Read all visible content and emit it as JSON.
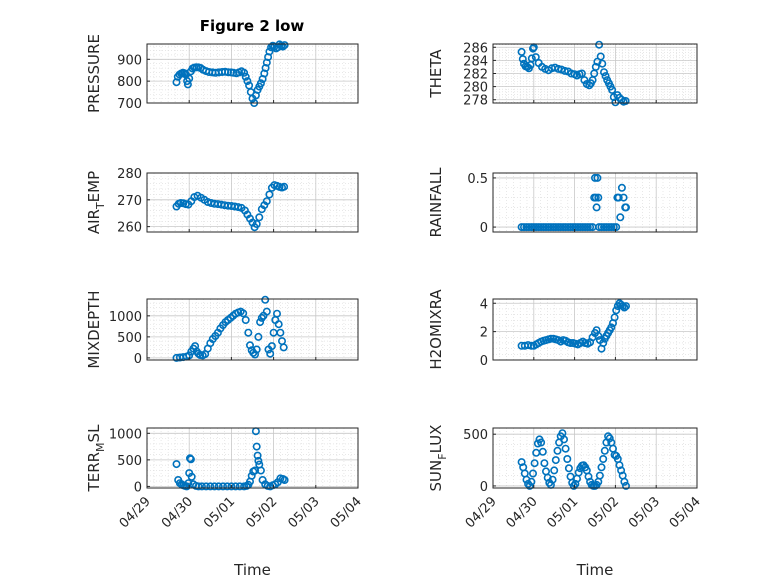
{
  "figure": {
    "title": "Figure 2 low",
    "marker_color": "#0072BD",
    "x_ticks": [
      "04/29",
      "04/30",
      "05/01",
      "05/02",
      "05/03",
      "05/04"
    ],
    "x_label": "Time"
  },
  "chart_data": [
    {
      "type": "scatter",
      "id": "pressure",
      "ylabel": "PRESSURE",
      "ylim": [
        700,
        970
      ],
      "yticks": [
        700,
        800,
        900
      ],
      "grid": true,
      "series": [
        {
          "x": [
            0.7,
            0.73,
            0.77,
            0.81,
            0.85,
            0.89,
            0.92,
            0.95,
            0.97,
            1.0,
            1.04,
            1.08,
            1.12,
            1.17,
            1.22,
            1.27,
            1.33,
            1.4,
            1.47,
            1.55,
            1.62,
            1.7,
            1.78,
            1.85,
            1.92,
            1.99,
            2.05,
            2.12,
            2.18,
            2.24,
            2.3,
            2.34,
            2.38,
            2.42,
            2.46,
            2.5,
            2.54,
            2.58,
            2.62,
            2.66,
            2.7,
            2.74,
            2.78,
            2.81,
            2.84,
            2.87,
            2.9,
            2.94,
            2.98,
            3.02,
            3.06,
            3.1,
            3.14,
            3.18,
            3.22,
            3.26
          ],
          "y": [
            795,
            820,
            830,
            835,
            838,
            836,
            830,
            800,
            785,
            812,
            845,
            858,
            862,
            864,
            863,
            860,
            852,
            846,
            842,
            840,
            838,
            840,
            842,
            843,
            841,
            840,
            838,
            836,
            840,
            845,
            838,
            820,
            800,
            780,
            750,
            720,
            700,
            735,
            760,
            775,
            790,
            810,
            835,
            860,
            885,
            910,
            935,
            955,
            962,
            958,
            950,
            955,
            968,
            962,
            958,
            965
          ]
        }
      ]
    },
    {
      "type": "scatter",
      "id": "theta",
      "ylabel": "THETA",
      "ylim": [
        277.5,
        286.5
      ],
      "yticks": [
        278,
        280,
        282,
        284,
        286
      ],
      "ytick_labels": [
        "278",
        "280",
        "282",
        "284",
        "286"
      ],
      "grid": true,
      "series": [
        {
          "x": [
            0.7,
            0.73,
            0.76,
            0.8,
            0.84,
            0.88,
            0.92,
            0.95,
            0.98,
            1.0,
            1.05,
            1.12,
            1.2,
            1.28,
            1.36,
            1.44,
            1.52,
            1.6,
            1.68,
            1.76,
            1.84,
            1.92,
            2.0,
            2.06,
            2.12,
            2.18,
            2.24,
            2.3,
            2.36,
            2.4,
            2.44,
            2.48,
            2.52,
            2.56,
            2.6,
            2.64,
            2.68,
            2.72,
            2.76,
            2.8,
            2.84,
            2.88,
            2.92,
            2.96,
            3.0,
            3.05,
            3.1,
            3.15,
            3.2,
            3.25
          ],
          "y": [
            285.3,
            284.2,
            283.5,
            283.1,
            283.0,
            282.8,
            283.3,
            284.3,
            285.8,
            286.0,
            284.5,
            283.6,
            283.0,
            282.7,
            282.5,
            282.8,
            282.9,
            282.7,
            282.6,
            282.4,
            282.3,
            282.0,
            281.9,
            281.7,
            281.9,
            282.0,
            281.0,
            280.4,
            280.2,
            280.5,
            281.0,
            282.0,
            283.0,
            283.8,
            286.4,
            284.6,
            283.5,
            282.2,
            281.6,
            281.0,
            280.5,
            280.0,
            279.5,
            278.4,
            277.6,
            278.7,
            278.3,
            278.0,
            277.7,
            277.8
          ]
        }
      ]
    },
    {
      "type": "scatter",
      "id": "air_temp",
      "ylabel": "AIR",
      "ylabel_sub": "T",
      "ylabel_rest": "EMP",
      "ylim": [
        258,
        280
      ],
      "yticks": [
        260,
        270,
        280
      ],
      "grid": true,
      "series": [
        {
          "x": [
            0.7,
            0.75,
            0.8,
            0.86,
            0.92,
            0.98,
            1.05,
            1.12,
            1.2,
            1.28,
            1.36,
            1.44,
            1.52,
            1.6,
            1.68,
            1.76,
            1.84,
            1.92,
            2.0,
            2.08,
            2.16,
            2.24,
            2.32,
            2.38,
            2.44,
            2.5,
            2.55,
            2.6,
            2.66,
            2.72,
            2.78,
            2.84,
            2.9,
            2.96,
            3.02,
            3.08,
            3.14,
            3.2,
            3.25
          ],
          "y": [
            267.5,
            268.5,
            268.8,
            268.7,
            268.4,
            268.2,
            269.5,
            271.0,
            271.5,
            270.8,
            270.0,
            269.2,
            268.8,
            268.5,
            268.4,
            268.2,
            268.0,
            267.8,
            267.7,
            267.5,
            267.3,
            267.0,
            266.0,
            264.5,
            263.0,
            261.5,
            259.8,
            261.0,
            263.5,
            266.5,
            268.0,
            269.5,
            272.0,
            274.5,
            275.5,
            275.2,
            274.8,
            274.6,
            274.9
          ]
        }
      ]
    },
    {
      "type": "scatter",
      "id": "rainfall",
      "ylabel": "RAINFALL",
      "ylim": [
        -0.05,
        0.55
      ],
      "yticks": [
        0,
        0.5
      ],
      "ytick_labels": [
        "0",
        "0.5"
      ],
      "grid": true,
      "series": [
        {
          "x": [
            0.7,
            0.76,
            0.82,
            0.88,
            0.94,
            1.0,
            1.06,
            1.12,
            1.18,
            1.24,
            1.3,
            1.36,
            1.42,
            1.48,
            1.54,
            1.6,
            1.66,
            1.72,
            1.78,
            1.84,
            1.9,
            1.96,
            2.02,
            2.08,
            2.14,
            2.2,
            2.26,
            2.32,
            2.38,
            2.44,
            2.48,
            2.5,
            2.52,
            2.54,
            2.56,
            2.58,
            2.6,
            2.66,
            2.72,
            2.78,
            2.84,
            2.9,
            2.96,
            3.02,
            3.05,
            3.08,
            3.12,
            3.16,
            3.2,
            3.24,
            3.26
          ],
          "y": [
            0,
            0,
            0,
            0,
            0,
            0,
            0,
            0,
            0,
            0,
            0,
            0,
            0,
            0,
            0,
            0,
            0,
            0,
            0,
            0,
            0,
            0,
            0,
            0,
            0,
            0,
            0,
            0,
            0,
            0,
            0.3,
            0.5,
            0.3,
            0.2,
            0.5,
            0.3,
            0,
            0,
            0,
            0,
            0,
            0,
            0,
            0,
            0.3,
            0.3,
            0.1,
            0.4,
            0.3,
            0.2,
            0.2
          ]
        }
      ]
    },
    {
      "type": "scatter",
      "id": "mixdepth",
      "ylabel": "MIXDEPTH",
      "ylim": [
        -50,
        1400
      ],
      "yticks": [
        0,
        500,
        1000
      ],
      "grid": true,
      "series": [
        {
          "x": [
            0.7,
            0.78,
            0.86,
            0.94,
            1.0,
            1.05,
            1.1,
            1.14,
            1.18,
            1.22,
            1.26,
            1.32,
            1.38,
            1.44,
            1.5,
            1.56,
            1.62,
            1.68,
            1.74,
            1.8,
            1.86,
            1.92,
            1.98,
            2.04,
            2.1,
            2.16,
            2.22,
            2.28,
            2.34,
            2.4,
            2.44,
            2.48,
            2.52,
            2.56,
            2.6,
            2.64,
            2.68,
            2.72,
            2.76,
            2.8,
            2.84,
            2.88,
            2.92,
            2.96,
            3.0,
            3.04,
            3.08,
            3.12,
            3.16,
            3.2,
            3.24
          ],
          "y": [
            0,
            10,
            20,
            30,
            60,
            150,
            220,
            280,
            150,
            100,
            70,
            60,
            90,
            220,
            350,
            450,
            520,
            600,
            700,
            780,
            850,
            900,
            950,
            1000,
            1050,
            1080,
            1100,
            1060,
            900,
            600,
            300,
            180,
            120,
            80,
            200,
            500,
            850,
            950,
            1000,
            1380,
            1100,
            200,
            100,
            280,
            600,
            900,
            1050,
            800,
            600,
            400,
            250
          ]
        }
      ]
    },
    {
      "type": "scatter",
      "id": "h2omixra",
      "ylabel": "H2OMIXRA",
      "ylim": [
        0,
        4.3
      ],
      "yticks": [
        0,
        2,
        4
      ],
      "grid": true,
      "series": [
        {
          "x": [
            0.7,
            0.78,
            0.86,
            0.94,
            1.0,
            1.06,
            1.12,
            1.18,
            1.24,
            1.3,
            1.36,
            1.42,
            1.48,
            1.54,
            1.6,
            1.66,
            1.72,
            1.78,
            1.84,
            1.9,
            1.96,
            2.02,
            2.08,
            2.14,
            2.2,
            2.26,
            2.32,
            2.38,
            2.44,
            2.5,
            2.54,
            2.58,
            2.62,
            2.66,
            2.7,
            2.74,
            2.78,
            2.82,
            2.86,
            2.9,
            2.94,
            2.98,
            3.02,
            3.06,
            3.1,
            3.14,
            3.18,
            3.22,
            3.26
          ],
          "y": [
            1.0,
            1.0,
            1.05,
            1.0,
            1.0,
            1.1,
            1.2,
            1.3,
            1.35,
            1.4,
            1.45,
            1.5,
            1.5,
            1.45,
            1.4,
            1.3,
            1.4,
            1.35,
            1.25,
            1.2,
            1.2,
            1.15,
            1.1,
            1.2,
            1.3,
            1.2,
            1.15,
            1.25,
            1.6,
            1.9,
            2.1,
            1.7,
            1.4,
            0.8,
            1.2,
            1.5,
            1.7,
            1.9,
            2.1,
            2.3,
            2.6,
            3.0,
            3.5,
            3.8,
            4.0,
            3.9,
            3.8,
            3.7,
            3.8
          ]
        }
      ]
    },
    {
      "type": "scatter",
      "id": "terr_msl",
      "ylabel": "TERR",
      "ylabel_sub": "M",
      "ylabel_rest": "SL",
      "ylim": [
        -30,
        1100
      ],
      "yticks": [
        0,
        500,
        1000
      ],
      "grid": true,
      "series": [
        {
          "x": [
            0.7,
            0.74,
            0.78,
            0.82,
            0.86,
            0.9,
            0.94,
            0.98,
            1.0,
            1.02,
            1.04,
            1.06,
            1.1,
            1.16,
            1.22,
            1.3,
            1.4,
            1.5,
            1.6,
            1.7,
            1.8,
            1.9,
            2.0,
            2.1,
            2.2,
            2.3,
            2.36,
            2.4,
            2.44,
            2.48,
            2.52,
            2.56,
            2.58,
            2.6,
            2.62,
            2.64,
            2.66,
            2.7,
            2.74,
            2.8,
            2.86,
            2.92,
            2.98,
            3.04,
            3.1,
            3.16,
            3.22,
            3.26
          ],
          "y": [
            420,
            120,
            60,
            40,
            20,
            10,
            0,
            60,
            250,
            530,
            510,
            180,
            40,
            10,
            0,
            0,
            0,
            0,
            0,
            0,
            0,
            0,
            0,
            0,
            0,
            0,
            10,
            30,
            90,
            200,
            280,
            300,
            1040,
            750,
            580,
            480,
            410,
            300,
            120,
            40,
            10,
            0,
            20,
            40,
            80,
            150,
            140,
            120
          ]
        }
      ]
    },
    {
      "type": "scatter",
      "id": "sun_flux",
      "ylabel": "SUN",
      "ylabel_sub": "F",
      "ylabel_rest": "LUX",
      "ylim": [
        -20,
        560
      ],
      "yticks": [
        0,
        500
      ],
      "grid": true,
      "series": [
        {
          "x": [
            0.7,
            0.74,
            0.78,
            0.82,
            0.86,
            0.9,
            0.94,
            0.98,
            1.02,
            1.06,
            1.1,
            1.14,
            1.18,
            1.22,
            1.26,
            1.3,
            1.34,
            1.38,
            1.42,
            1.46,
            1.5,
            1.54,
            1.58,
            1.62,
            1.66,
            1.7,
            1.74,
            1.78,
            1.82,
            1.86,
            1.9,
            1.94,
            1.98,
            2.02,
            2.06,
            2.1,
            2.14,
            2.18,
            2.22,
            2.26,
            2.3,
            2.34,
            2.38,
            2.42,
            2.46,
            2.5,
            2.54,
            2.58,
            2.62,
            2.66,
            2.7,
            2.74,
            2.78,
            2.82,
            2.86,
            2.9,
            2.94,
            2.98,
            3.02,
            3.06,
            3.1,
            3.14,
            3.18,
            3.22,
            3.26
          ],
          "y": [
            230,
            180,
            120,
            60,
            20,
            0,
            40,
            120,
            220,
            320,
            410,
            450,
            420,
            330,
            220,
            140,
            80,
            30,
            10,
            60,
            150,
            250,
            340,
            420,
            480,
            510,
            450,
            360,
            260,
            170,
            90,
            30,
            0,
            20,
            70,
            130,
            170,
            195,
            200,
            180,
            150,
            90,
            40,
            10,
            0,
            0,
            10,
            40,
            100,
            180,
            260,
            340,
            420,
            480,
            460,
            420,
            360,
            300,
            290,
            260,
            200,
            150,
            100,
            40,
            0
          ]
        }
      ]
    }
  ]
}
